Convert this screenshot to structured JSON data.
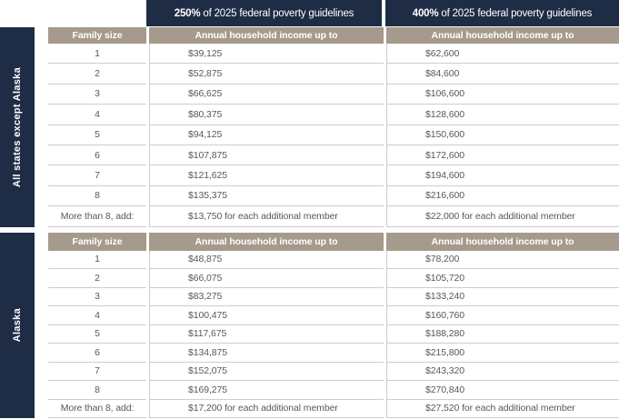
{
  "colors": {
    "navy": "#1e2c45",
    "tan": "#a59a8b",
    "row_border": "#cdcdcd",
    "body_text": "#57585c",
    "header_text": "#ffffff"
  },
  "chart_data": {
    "type": "table",
    "title": "250% and 400% of 2025 federal poverty guidelines by family size",
    "group_headers": [
      {
        "pct": "250%",
        "rest": " of 2025 federal poverty guidelines"
      },
      {
        "pct": "400%",
        "rest": " of 2025 federal poverty guidelines"
      }
    ],
    "tables": [
      {
        "region": "All states except Alaska",
        "columns": [
          "Family size",
          "Annual household income up to",
          "Annual household income up to"
        ],
        "rows": [
          [
            "1",
            "$39,125",
            "$62,600"
          ],
          [
            "2",
            "$52,875",
            "$84,600"
          ],
          [
            "3",
            "$66,625",
            "$106,600"
          ],
          [
            "4",
            "$80,375",
            "$128,600"
          ],
          [
            "5",
            "$94,125",
            "$150,600"
          ],
          [
            "6",
            "$107,875",
            "$172,600"
          ],
          [
            "7",
            "$121,625",
            "$194,600"
          ],
          [
            "8",
            "$135,375",
            "$216,600"
          ],
          [
            "More than 8, add:",
            "$13,750 for each additional member",
            "$22,000 for each additional member"
          ]
        ]
      },
      {
        "region": "Alaska",
        "columns": [
          "Family size",
          "Annual household income up to",
          "Annual household income up to"
        ],
        "rows": [
          [
            "1",
            "$48,875",
            "$78,200"
          ],
          [
            "2",
            "$66,075",
            "$105,720"
          ],
          [
            "3",
            "$83,275",
            "$133,240"
          ],
          [
            "4",
            "$100,475",
            "$160,760"
          ],
          [
            "5",
            "$117,675",
            "$188,280"
          ],
          [
            "6",
            "$134,875",
            "$215,800"
          ],
          [
            "7",
            "$152,075",
            "$243,320"
          ],
          [
            "8",
            "$169,275",
            "$270,840"
          ],
          [
            "More than 8, add:",
            "$17,200 for each additional member",
            "$27,520  for each additional member"
          ]
        ]
      }
    ]
  }
}
